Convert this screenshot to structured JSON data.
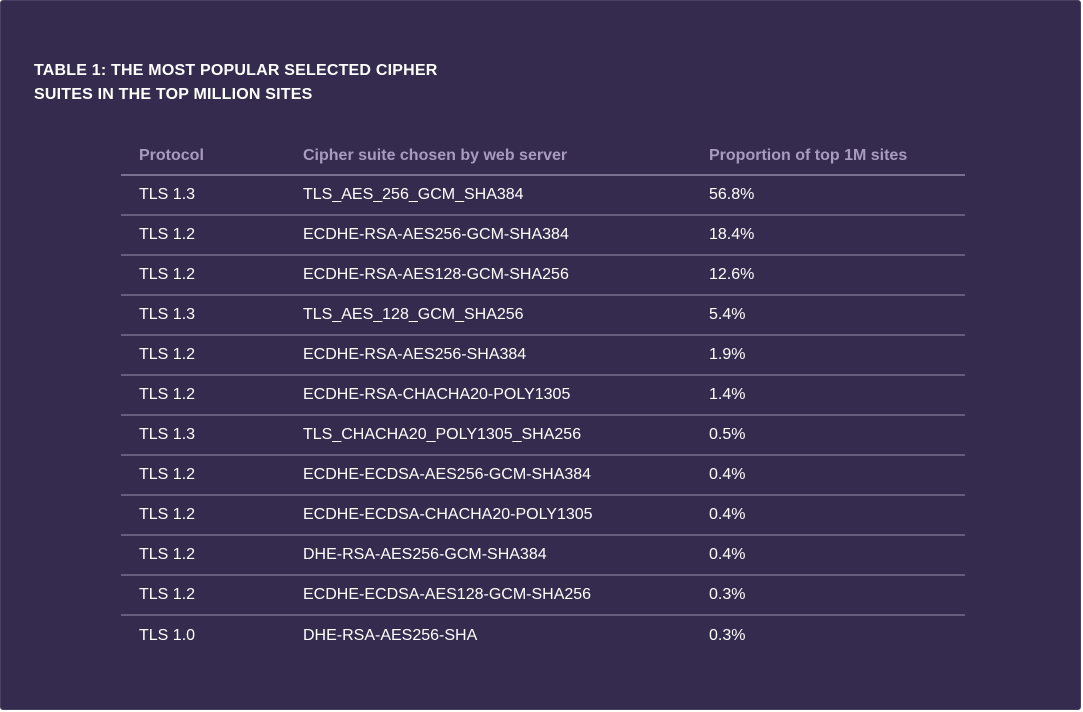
{
  "title": {
    "line1": "TABLE 1: THE MOST POPULAR SELECTED CIPHER",
    "line2": "SUITES IN THE TOP MILLION SITES"
  },
  "table": {
    "headers": [
      "Protocol",
      "Cipher suite chosen by web server",
      "Proportion of top 1M sites"
    ],
    "rows": [
      [
        "TLS 1.3",
        "TLS_AES_256_GCM_SHA384",
        "56.8%"
      ],
      [
        "TLS 1.2",
        "ECDHE-RSA-AES256-GCM-SHA384",
        "18.4%"
      ],
      [
        "TLS 1.2",
        "ECDHE-RSA-AES128-GCM-SHA256",
        "12.6%"
      ],
      [
        "TLS 1.3",
        "TLS_AES_128_GCM_SHA256",
        "5.4%"
      ],
      [
        "TLS 1.2",
        "ECDHE-RSA-AES256-SHA384",
        "1.9%"
      ],
      [
        "TLS 1.2",
        "ECDHE-RSA-CHACHA20-POLY1305",
        "1.4%"
      ],
      [
        "TLS 1.3",
        "TLS_CHACHA20_POLY1305_SHA256",
        "0.5%"
      ],
      [
        "TLS 1.2",
        "ECDHE-ECDSA-AES256-GCM-SHA384",
        "0.4%"
      ],
      [
        "TLS 1.2",
        "ECDHE-ECDSA-CHACHA20-POLY1305",
        "0.4%"
      ],
      [
        "TLS 1.2",
        "DHE-RSA-AES256-GCM-SHA384",
        "0.4%"
      ],
      [
        "TLS 1.2",
        "ECDHE-ECDSA-AES128-GCM-SHA256",
        "0.3%"
      ],
      [
        "TLS 1.0",
        "DHE-RSA-AES256-SHA",
        "0.3%"
      ]
    ]
  },
  "colors": {
    "background": "#352b4e",
    "header_text": "#a79cc0",
    "body_text": "#ffffff",
    "rule": "#675e7d"
  }
}
